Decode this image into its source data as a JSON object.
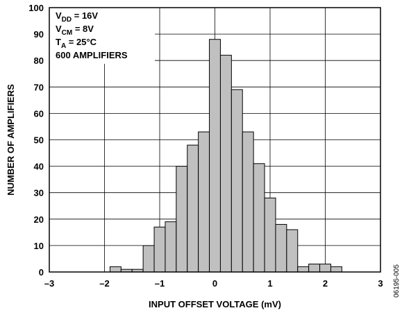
{
  "chart_data": {
    "type": "bar",
    "variant": "histogram",
    "xlabel": "INPUT OFFSET VOLTAGE (mV)",
    "ylabel": "NUMBER OF AMPLIFIERS",
    "xlim": [
      -3,
      3
    ],
    "ylim": [
      0,
      100
    ],
    "x_ticks": [
      "–3",
      "–2",
      "–1",
      "0",
      "1",
      "2",
      "3"
    ],
    "y_ticks": [
      "0",
      "10",
      "20",
      "30",
      "40",
      "50",
      "60",
      "70",
      "80",
      "90",
      "100"
    ],
    "bin_width": 0.2,
    "bins": [
      {
        "x0": -1.9,
        "value": 2
      },
      {
        "x0": -1.7,
        "value": 1
      },
      {
        "x0": -1.5,
        "value": 1
      },
      {
        "x0": -1.3,
        "value": 10
      },
      {
        "x0": -1.1,
        "value": 17
      },
      {
        "x0": -0.9,
        "value": 19
      },
      {
        "x0": -0.7,
        "value": 40
      },
      {
        "x0": -0.5,
        "value": 48
      },
      {
        "x0": -0.3,
        "value": 53
      },
      {
        "x0": -0.1,
        "value": 88
      },
      {
        "x0": 0.1,
        "value": 82
      },
      {
        "x0": 0.3,
        "value": 69
      },
      {
        "x0": 0.5,
        "value": 53
      },
      {
        "x0": 0.7,
        "value": 41
      },
      {
        "x0": 0.9,
        "value": 28
      },
      {
        "x0": 1.1,
        "value": 18
      },
      {
        "x0": 1.3,
        "value": 16
      },
      {
        "x0": 1.5,
        "value": 2
      },
      {
        "x0": 1.7,
        "value": 3
      },
      {
        "x0": 1.9,
        "value": 3
      },
      {
        "x0": 2.1,
        "value": 2
      }
    ],
    "grid": true,
    "bar_color": "#c0c0c0",
    "bar_edge_color": "#000000",
    "annotations": [
      {
        "main": "V",
        "sub": "DD",
        "rest": " = 16V"
      },
      {
        "main": "V",
        "sub": "CM",
        "rest": " = 8V"
      },
      {
        "main": "T",
        "sub": "A",
        "rest": " = 25°C"
      },
      {
        "main": "600 AMPLIFIERS",
        "sub": "",
        "rest": ""
      }
    ],
    "figure_id": "06195-005"
  }
}
